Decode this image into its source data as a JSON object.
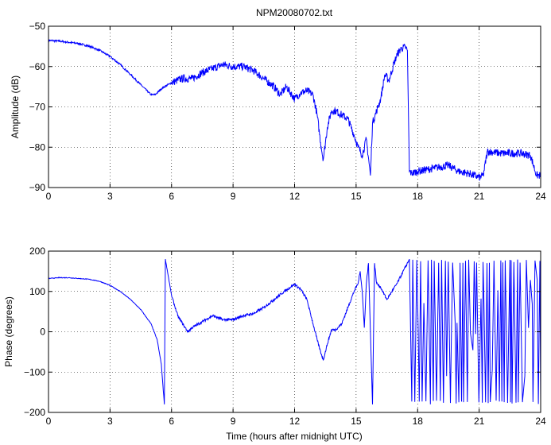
{
  "chart_data": [
    {
      "type": "line",
      "title": "NPM20080702.txt",
      "xlabel": "",
      "ylabel": "Amplitude (dB)",
      "xlim": [
        0,
        24
      ],
      "ylim": [
        -90,
        -50
      ],
      "x_ticks": [
        0,
        3,
        6,
        9,
        12,
        15,
        18,
        21,
        24
      ],
      "x_tick_labels": [
        "0",
        "3",
        "6",
        "9",
        "12",
        "15",
        "18",
        "21",
        "24"
      ],
      "y_ticks": [
        -90,
        -80,
        -70,
        -60,
        -50
      ],
      "y_tick_labels": [
        "−90",
        "−80",
        "−70",
        "−60",
        "−50"
      ],
      "grid": true,
      "line_color": "#0000ff",
      "series": [
        {
          "x": [
            0,
            0.5,
            1,
            1.5,
            2,
            2.5,
            3,
            3.5,
            4,
            4.5,
            5,
            5.2,
            5.5,
            6,
            6.5,
            7,
            7.5,
            8,
            8.5,
            9,
            9.5,
            10,
            10.5,
            11,
            11.3,
            11.6,
            12,
            12.3,
            12.6,
            12.9,
            13.1,
            13.3,
            13.4,
            13.6,
            13.8,
            14,
            14.3,
            14.6,
            14.9,
            15.1,
            15.3,
            15.5,
            15.7,
            15.8,
            16,
            16.2,
            16.4,
            16.6,
            16.8,
            17,
            17.2,
            17.4,
            17.5,
            17.6,
            17.7,
            18,
            18.5,
            19,
            19.5,
            20,
            20.5,
            21,
            21.2,
            21.4,
            22,
            22.5,
            23,
            23.5,
            23.8,
            24
          ],
          "y": [
            -53.5,
            -53.7,
            -54,
            -54.3,
            -55,
            -56,
            -57.5,
            -59.5,
            -62,
            -64.5,
            -67,
            -67,
            -65.5,
            -64,
            -63,
            -63,
            -61.5,
            -60.5,
            -59.5,
            -60,
            -60,
            -61,
            -63,
            -65,
            -67,
            -65,
            -68,
            -66.5,
            -66,
            -67,
            -72,
            -80,
            -83,
            -75,
            -71,
            -71,
            -72,
            -73,
            -77,
            -80,
            -82,
            -78,
            -87,
            -74,
            -71,
            -68,
            -62,
            -63.5,
            -60,
            -57,
            -55.5,
            -55.2,
            -56,
            -86,
            -86.5,
            -86,
            -85.5,
            -85,
            -84.5,
            -86,
            -86.5,
            -87.5,
            -87,
            -81,
            -81.5,
            -81.5,
            -81.5,
            -82,
            -87,
            -87
          ]
        }
      ]
    },
    {
      "type": "line",
      "title": "",
      "xlabel": "Time (hours after midnight UTC)",
      "ylabel": "Phase (degrees)",
      "xlim": [
        0,
        24
      ],
      "ylim": [
        -200,
        200
      ],
      "x_ticks": [
        0,
        3,
        6,
        9,
        12,
        15,
        18,
        21,
        24
      ],
      "x_tick_labels": [
        "0",
        "3",
        "6",
        "9",
        "12",
        "15",
        "18",
        "21",
        "24"
      ],
      "y_ticks": [
        -200,
        -100,
        0,
        100,
        200
      ],
      "y_tick_labels": [
        "−200",
        "−100",
        "0",
        "100",
        "200"
      ],
      "grid": true,
      "line_color": "#0000ff",
      "series": [
        {
          "x": [
            0,
            0.5,
            1,
            1.5,
            2,
            2.5,
            3,
            3.5,
            4,
            4.5,
            5,
            5.3,
            5.5,
            5.65,
            5.7,
            5.8,
            6,
            6.3,
            6.6,
            6.8,
            7,
            7.5,
            8,
            8.5,
            9,
            9.5,
            10,
            10.5,
            11,
            11.5,
            12,
            12.3,
            12.6,
            12.9,
            13.1,
            13.3,
            13.4,
            13.6,
            13.8,
            14,
            14.3,
            14.6,
            14.9,
            15.1,
            15.2,
            15.3,
            15.4,
            15.5,
            15.6,
            15.8,
            15.9,
            16,
            16.2,
            16.5,
            17,
            17.4,
            17.6
          ],
          "y": [
            132,
            134,
            134,
            132,
            130,
            125,
            115,
            100,
            80,
            55,
            20,
            -20,
            -80,
            -180,
            180,
            150,
            90,
            40,
            15,
            0,
            10,
            25,
            40,
            30,
            30,
            40,
            45,
            60,
            80,
            100,
            118,
            105,
            80,
            20,
            -20,
            -55,
            -70,
            -30,
            5,
            5,
            20,
            60,
            100,
            120,
            150,
            100,
            10,
            120,
            170,
            -180,
            170,
            120,
            110,
            80,
            120,
            160,
            180
          ]
        }
      ],
      "annotations": [
        "Phase wraps rapidly between −180 and 180 from about hour 17.6 to 24"
      ]
    }
  ]
}
